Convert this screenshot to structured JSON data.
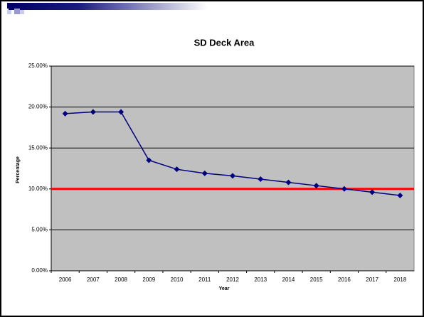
{
  "chart_data": {
    "type": "line",
    "title": "SD Deck Area",
    "x_label": "Year",
    "y_label": "Percentage",
    "categories": [
      "2006",
      "2007",
      "2008",
      "2009",
      "2010",
      "2011",
      "2012",
      "2013",
      "2014",
      "2015",
      "2016",
      "2017",
      "2018"
    ],
    "values": [
      19.2,
      19.4,
      19.4,
      13.5,
      12.4,
      11.9,
      11.6,
      11.2,
      10.8,
      10.4,
      10.0,
      9.6,
      9.2
    ],
    "color": "#000080",
    "ylim": [
      0,
      25
    ],
    "yticks": [
      {
        "value": 0,
        "label": "0.00%"
      },
      {
        "value": 5,
        "label": "5.00%"
      },
      {
        "value": 10,
        "label": "10.00%"
      },
      {
        "value": 15,
        "label": "15.00%"
      },
      {
        "value": 20,
        "label": "20.00%"
      },
      {
        "value": 25,
        "label": "25.00%"
      }
    ],
    "grid": true,
    "plot_background": "#c0c0c0",
    "reference_lines": [
      {
        "value": 10,
        "color": "#ff0000"
      }
    ]
  }
}
